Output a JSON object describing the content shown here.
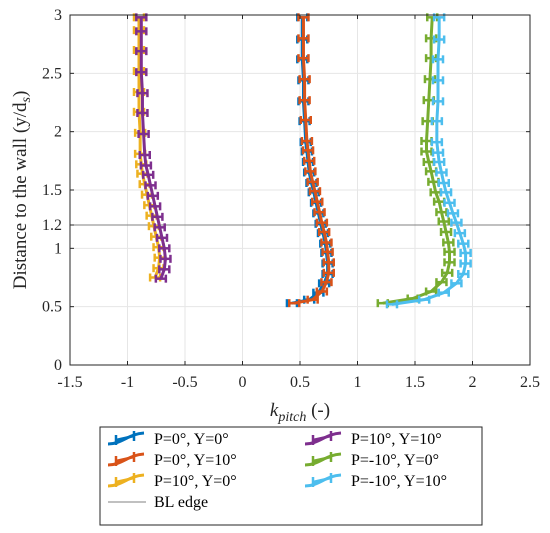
{
  "chart_data": {
    "type": "line",
    "xlabel_main": "k",
    "xlabel_sub": "pitch",
    "xlabel_unit": " (-)",
    "ylabel": "Distance to the wall (y/d",
    "ylabel_sub": "s",
    "ylabel_close": ")",
    "xlim": [
      -1.5,
      2.5
    ],
    "ylim": [
      0,
      3
    ],
    "xticks": [
      -1.5,
      -1,
      -0.5,
      0,
      0.5,
      1,
      1.5,
      2,
      2.5
    ],
    "xtick_labels": [
      "-1.5",
      "-1",
      "-0.5",
      "0",
      "0.5",
      "1",
      "1.5",
      "2",
      "2.5"
    ],
    "yticks": [
      0,
      0.5,
      1,
      1.2,
      1.5,
      2,
      2.5,
      3
    ],
    "ytick_labels": [
      "0",
      "0.5",
      "1",
      "1.2",
      "1.5",
      "2",
      "2.5",
      "3"
    ],
    "grid": true,
    "legend_position": "bottom-outside",
    "reference_line": {
      "name": "BL edge",
      "y": 1.2,
      "color": "#808080"
    },
    "series": [
      {
        "name": "P=0°, Y=0°",
        "color": "#0072BD",
        "points": [
          [
            0.43,
            0.53
          ],
          [
            0.58,
            0.56
          ],
          [
            0.66,
            0.62
          ],
          [
            0.71,
            0.7
          ],
          [
            0.74,
            0.78
          ],
          [
            0.74,
            0.87
          ],
          [
            0.73,
            0.96
          ],
          [
            0.72,
            1.04
          ],
          [
            0.7,
            1.13
          ],
          [
            0.68,
            1.21
          ],
          [
            0.66,
            1.3
          ],
          [
            0.64,
            1.39
          ],
          [
            0.62,
            1.48
          ],
          [
            0.6,
            1.56
          ],
          [
            0.58,
            1.65
          ],
          [
            0.57,
            1.74
          ],
          [
            0.56,
            1.83
          ],
          [
            0.55,
            1.91
          ],
          [
            0.54,
            2.09
          ],
          [
            0.53,
            2.26
          ],
          [
            0.53,
            2.44
          ],
          [
            0.52,
            2.62
          ],
          [
            0.52,
            2.79
          ],
          [
            0.52,
            2.98
          ]
        ]
      },
      {
        "name": "P=0°, Y=10°",
        "color": "#D95319",
        "points": [
          [
            0.45,
            0.53
          ],
          [
            0.61,
            0.56
          ],
          [
            0.69,
            0.63
          ],
          [
            0.73,
            0.71
          ],
          [
            0.75,
            0.79
          ],
          [
            0.75,
            0.88
          ],
          [
            0.74,
            0.97
          ],
          [
            0.73,
            1.05
          ],
          [
            0.71,
            1.14
          ],
          [
            0.69,
            1.22
          ],
          [
            0.67,
            1.31
          ],
          [
            0.65,
            1.4
          ],
          [
            0.63,
            1.49
          ],
          [
            0.61,
            1.57
          ],
          [
            0.59,
            1.66
          ],
          [
            0.58,
            1.75
          ],
          [
            0.57,
            1.84
          ],
          [
            0.56,
            1.92
          ],
          [
            0.55,
            2.1
          ],
          [
            0.54,
            2.27
          ],
          [
            0.54,
            2.45
          ],
          [
            0.53,
            2.63
          ],
          [
            0.53,
            2.8
          ],
          [
            0.53,
            2.98
          ]
        ]
      },
      {
        "name": "P=10°, Y=0°",
        "color": "#EDB120",
        "points": [
          [
            -0.76,
            0.75
          ],
          [
            -0.73,
            0.83
          ],
          [
            -0.72,
            0.92
          ],
          [
            -0.73,
            1.01
          ],
          [
            -0.75,
            1.1
          ],
          [
            -0.77,
            1.19
          ],
          [
            -0.79,
            1.28
          ],
          [
            -0.81,
            1.37
          ],
          [
            -0.83,
            1.46
          ],
          [
            -0.85,
            1.55
          ],
          [
            -0.87,
            1.64
          ],
          [
            -0.88,
            1.72
          ],
          [
            -0.89,
            1.81
          ],
          [
            -0.89,
            1.99
          ],
          [
            -0.9,
            2.17
          ],
          [
            -0.9,
            2.34
          ],
          [
            -0.9,
            2.52
          ],
          [
            -0.9,
            2.7
          ],
          [
            -0.9,
            2.87
          ],
          [
            -0.9,
            2.98
          ]
        ]
      },
      {
        "name": "P=10°, Y=10°",
        "color": "#7E2F8E",
        "points": [
          [
            -0.71,
            0.74
          ],
          [
            -0.68,
            0.82
          ],
          [
            -0.67,
            0.91
          ],
          [
            -0.68,
            1.0
          ],
          [
            -0.7,
            1.09
          ],
          [
            -0.72,
            1.18
          ],
          [
            -0.74,
            1.27
          ],
          [
            -0.76,
            1.36
          ],
          [
            -0.78,
            1.45
          ],
          [
            -0.8,
            1.54
          ],
          [
            -0.82,
            1.63
          ],
          [
            -0.84,
            1.71
          ],
          [
            -0.85,
            1.8
          ],
          [
            -0.86,
            1.98
          ],
          [
            -0.87,
            2.16
          ],
          [
            -0.87,
            2.33
          ],
          [
            -0.88,
            2.51
          ],
          [
            -0.88,
            2.69
          ],
          [
            -0.88,
            2.86
          ],
          [
            -0.88,
            2.98
          ]
        ]
      },
      {
        "name": "P=-10°, Y=0°",
        "color": "#77AC30",
        "points": [
          [
            1.22,
            0.53
          ],
          [
            1.48,
            0.57
          ],
          [
            1.64,
            0.63
          ],
          [
            1.73,
            0.71
          ],
          [
            1.78,
            0.79
          ],
          [
            1.8,
            0.88
          ],
          [
            1.8,
            0.97
          ],
          [
            1.79,
            1.05
          ],
          [
            1.77,
            1.14
          ],
          [
            1.75,
            1.23
          ],
          [
            1.73,
            1.31
          ],
          [
            1.71,
            1.4
          ],
          [
            1.68,
            1.48
          ],
          [
            1.66,
            1.57
          ],
          [
            1.64,
            1.66
          ],
          [
            1.62,
            1.74
          ],
          [
            1.6,
            1.83
          ],
          [
            1.6,
            1.92
          ],
          [
            1.61,
            2.09
          ],
          [
            1.62,
            2.27
          ],
          [
            1.63,
            2.45
          ],
          [
            1.64,
            2.63
          ],
          [
            1.64,
            2.8
          ],
          [
            1.65,
            2.98
          ]
        ]
      },
      {
        "name": "P=-10°, Y=10°",
        "color": "#4DBEEE",
        "points": [
          [
            1.3,
            0.52
          ],
          [
            1.58,
            0.56
          ],
          [
            1.75,
            0.62
          ],
          [
            1.86,
            0.7
          ],
          [
            1.92,
            0.78
          ],
          [
            1.94,
            0.87
          ],
          [
            1.94,
            0.96
          ],
          [
            1.92,
            1.04
          ],
          [
            1.89,
            1.13
          ],
          [
            1.86,
            1.22
          ],
          [
            1.83,
            1.3
          ],
          [
            1.8,
            1.39
          ],
          [
            1.77,
            1.48
          ],
          [
            1.75,
            1.56
          ],
          [
            1.73,
            1.65
          ],
          [
            1.71,
            1.74
          ],
          [
            1.7,
            1.82
          ],
          [
            1.69,
            1.91
          ],
          [
            1.69,
            2.09
          ],
          [
            1.7,
            2.26
          ],
          [
            1.7,
            2.44
          ],
          [
            1.7,
            2.62
          ],
          [
            1.71,
            2.79
          ],
          [
            1.71,
            2.98
          ]
        ]
      }
    ]
  }
}
